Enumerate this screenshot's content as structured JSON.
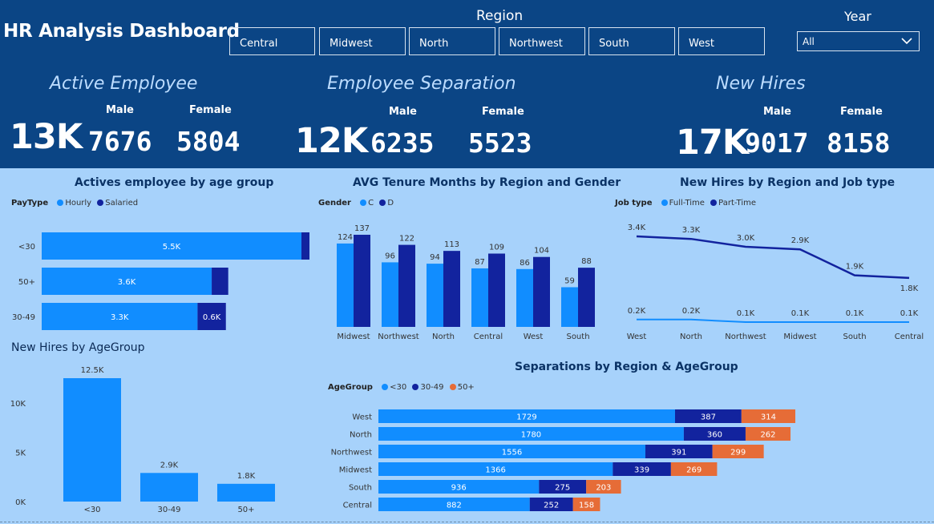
{
  "header": {
    "title": "HR Analysis Dashboard",
    "region_label": "Region",
    "regions": [
      "Central",
      "Midwest",
      "North",
      "Northwest",
      "South",
      "West"
    ],
    "year_label": "Year",
    "year_value": "All"
  },
  "kpis": {
    "active": {
      "title": "Active Employee",
      "total": "13K",
      "male_label": "Male",
      "female_label": "Female",
      "male": "7676",
      "female": "5804"
    },
    "separation": {
      "title": "Employee Separation",
      "total": "12K",
      "male_label": "Male",
      "female_label": "Female",
      "male": "6235",
      "female": "5523"
    },
    "hires": {
      "title": "New Hires",
      "total": "17K",
      "male_label": "Male",
      "female_label": "Female",
      "male": "9017",
      "female": "8158"
    }
  },
  "colors": {
    "header": "#0b4585",
    "panel": "#a7d2fb",
    "series1": "#118dff",
    "series2": "#12239e",
    "series3": "#e66c37"
  },
  "chart_data": [
    {
      "id": "actives_age",
      "type": "bar",
      "orientation": "horizontal",
      "stacked": true,
      "title": "Actives employee by age group",
      "legend_title": "PayType",
      "categories": [
        "<30",
        "50+",
        "30-49"
      ],
      "series": [
        {
          "name": "Hourly",
          "values": [
            5500,
            3600,
            3300
          ],
          "labels": [
            "5.5K",
            "3.6K",
            "3.3K"
          ]
        },
        {
          "name": "Salaried",
          "values": [
            170,
            350,
            600
          ],
          "labels": [
            "",
            "",
            "0.6K"
          ]
        }
      ]
    },
    {
      "id": "tenure",
      "type": "bar",
      "title": "AVG Tenure Months by Region and Gender",
      "legend_title": "Gender",
      "categories": [
        "Midwest",
        "Northwest",
        "North",
        "Central",
        "West",
        "South"
      ],
      "series": [
        {
          "name": "C",
          "values": [
            124,
            96,
            94,
            87,
            86,
            59
          ]
        },
        {
          "name": "D",
          "values": [
            137,
            122,
            113,
            109,
            104,
            88
          ]
        }
      ]
    },
    {
      "id": "hires_region",
      "type": "line",
      "title": "New Hires by Region and Job type",
      "legend_title": "Job type",
      "categories": [
        "West",
        "North",
        "Northwest",
        "Midwest",
        "South",
        "Central"
      ],
      "series": [
        {
          "name": "Full-Time",
          "values": [
            0.2,
            0.2,
            0.1,
            0.1,
            0.1,
            0.1
          ],
          "labels": [
            "0.2K",
            "0.2K",
            "0.1K",
            "0.1K",
            "0.1K",
            "0.1K"
          ]
        },
        {
          "name": "Part-Time",
          "values": [
            3.4,
            3.3,
            3.0,
            2.9,
            1.9,
            1.8
          ],
          "labels": [
            "3.4K",
            "3.3K",
            "3.0K",
            "2.9K",
            "1.9K",
            "1.8K"
          ]
        }
      ]
    },
    {
      "id": "hires_age",
      "type": "bar",
      "title": "New Hires by AgeGroup",
      "categories": [
        "<30",
        "30-49",
        "50+"
      ],
      "values": [
        12500,
        2900,
        1800
      ],
      "labels": [
        "12.5K",
        "2.9K",
        "1.8K"
      ],
      "yticks": [
        "0K",
        "5K",
        "10K"
      ],
      "ylim": [
        0,
        13500
      ]
    },
    {
      "id": "separations",
      "type": "bar",
      "orientation": "horizontal",
      "stacked": true,
      "title": "Separations by Region & AgeGroup",
      "legend_title": "AgeGroup",
      "categories": [
        "West",
        "North",
        "Northwest",
        "Midwest",
        "South",
        "Central"
      ],
      "series": [
        {
          "name": "<30",
          "values": [
            1729,
            1780,
            1556,
            1366,
            936,
            882
          ]
        },
        {
          "name": "30-49",
          "values": [
            387,
            360,
            391,
            339,
            275,
            252
          ]
        },
        {
          "name": "50+",
          "values": [
            314,
            262,
            299,
            269,
            203,
            158
          ]
        }
      ]
    }
  ]
}
